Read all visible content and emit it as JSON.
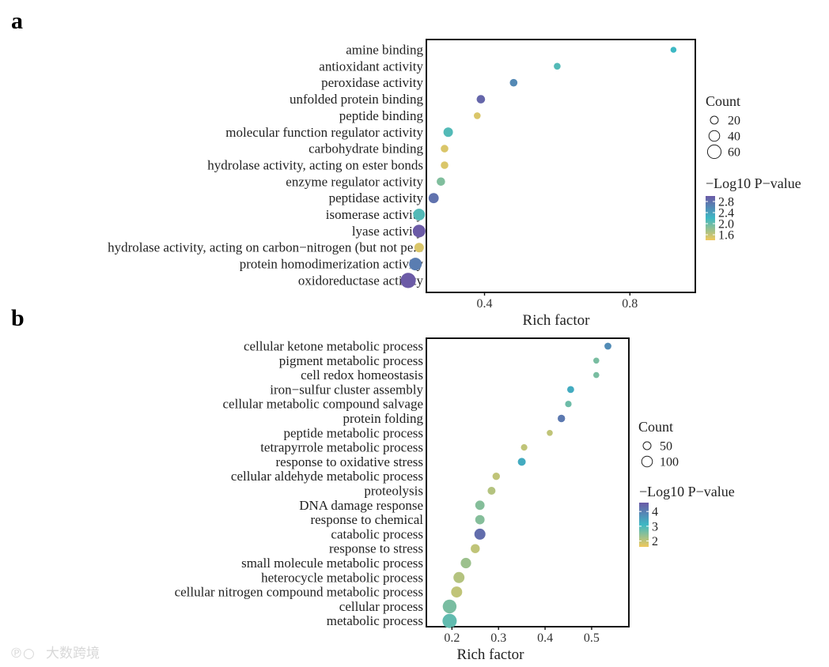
{
  "chart_data": [
    {
      "panel": "a",
      "type": "scatter",
      "title": "",
      "xlabel": "Rich factor",
      "ylabel": "",
      "xlim": [
        0.24,
        0.98
      ],
      "xticks": [
        0.4,
        0.8
      ],
      "xtick_labels": [
        "0.4",
        "0.8"
      ],
      "categories": [
        "amine binding",
        "antioxidant activity",
        "peroxidase activity",
        "unfolded protein binding",
        "peptide binding",
        "molecular function regulator activity",
        "carbohydrate binding",
        "hydrolase activity, acting on ester bonds",
        "enzyme regulator activity",
        "peptidase activity",
        "isomerase activity",
        "lyase activity",
        "hydrolase activity, acting on carbon−nitrogen (but not pe...",
        "protein homodimerization activity",
        "oxidoreductase activity"
      ],
      "rich_factor": [
        0.92,
        0.6,
        0.48,
        0.39,
        0.38,
        0.3,
        0.29,
        0.29,
        0.28,
        0.26,
        0.22,
        0.22,
        0.22,
        0.21,
        0.19
      ],
      "count": [
        8,
        10,
        12,
        14,
        10,
        18,
        12,
        12,
        14,
        20,
        26,
        30,
        18,
        30,
        42
      ],
      "neg_log10_p": [
        2.2,
        2.1,
        2.6,
        2.9,
        1.5,
        2.1,
        1.5,
        1.5,
        1.9,
        2.8,
        2.1,
        3.0,
        1.5,
        2.7,
        3.0
      ],
      "size_legend": {
        "title": "Count",
        "values": [
          20,
          40,
          60
        ]
      },
      "color_legend": {
        "title": "−Log10 P−value",
        "ticks": [
          2.8,
          2.4,
          2.0,
          1.6
        ],
        "tick_labels": [
          "2.8",
          "2.4",
          "2.0",
          "1.6"
        ],
        "range": [
          1.4,
          3.0
        ]
      }
    },
    {
      "panel": "b",
      "type": "scatter",
      "title": "",
      "xlabel": "Rich factor",
      "ylabel": "",
      "xlim": [
        0.145,
        0.58
      ],
      "xticks": [
        0.2,
        0.3,
        0.4,
        0.5
      ],
      "xtick_labels": [
        "0.2",
        "0.3",
        "0.4",
        "0.5"
      ],
      "categories": [
        "cellular ketone metabolic process",
        "pigment metabolic process",
        "cell redox homeostasis",
        "iron−sulfur cluster assembly",
        "cellular metabolic compound salvage",
        "protein folding",
        "peptide metabolic process",
        "tetrapyrrole metabolic process",
        "response to oxidative stress",
        "cellular aldehyde metabolic process",
        "proteolysis",
        "DNA damage response",
        "response to chemical",
        "catabolic process",
        "response to stress",
        "small molecule metabolic process",
        "heterocycle metabolic process",
        "cellular nitrogen compound metabolic process",
        "cellular process",
        "metabolic process"
      ],
      "rich_factor": [
        0.535,
        0.51,
        0.51,
        0.455,
        0.45,
        0.435,
        0.41,
        0.355,
        0.35,
        0.295,
        0.285,
        0.26,
        0.26,
        0.26,
        0.25,
        0.23,
        0.215,
        0.21,
        0.195,
        0.195
      ],
      "count": [
        18,
        14,
        14,
        18,
        16,
        20,
        14,
        16,
        22,
        20,
        22,
        30,
        30,
        40,
        28,
        36,
        40,
        40,
        60,
        64
      ],
      "neg_log10_p": [
        3.8,
        2.6,
        2.6,
        3.3,
        2.7,
        4.1,
        2.0,
        2.0,
        3.3,
        2.0,
        2.1,
        2.5,
        2.5,
        4.3,
        2.0,
        2.3,
        2.1,
        2.0,
        2.6,
        2.8
      ],
      "size_legend": {
        "title": "Count",
        "values": [
          50,
          100
        ]
      },
      "color_legend": {
        "title": "−Log10 P−value",
        "ticks": [
          4,
          3,
          2
        ],
        "tick_labels": [
          "4",
          "3",
          "2"
        ],
        "range": [
          1.6,
          4.6
        ]
      }
    }
  ],
  "panel_labels": {
    "a": "a",
    "b": "b"
  },
  "watermark": "大数跨境",
  "colors": {
    "high": "#6b5aa6",
    "mid": "#3db8c4",
    "low": "#f0c85c",
    "frame": "#111111"
  }
}
